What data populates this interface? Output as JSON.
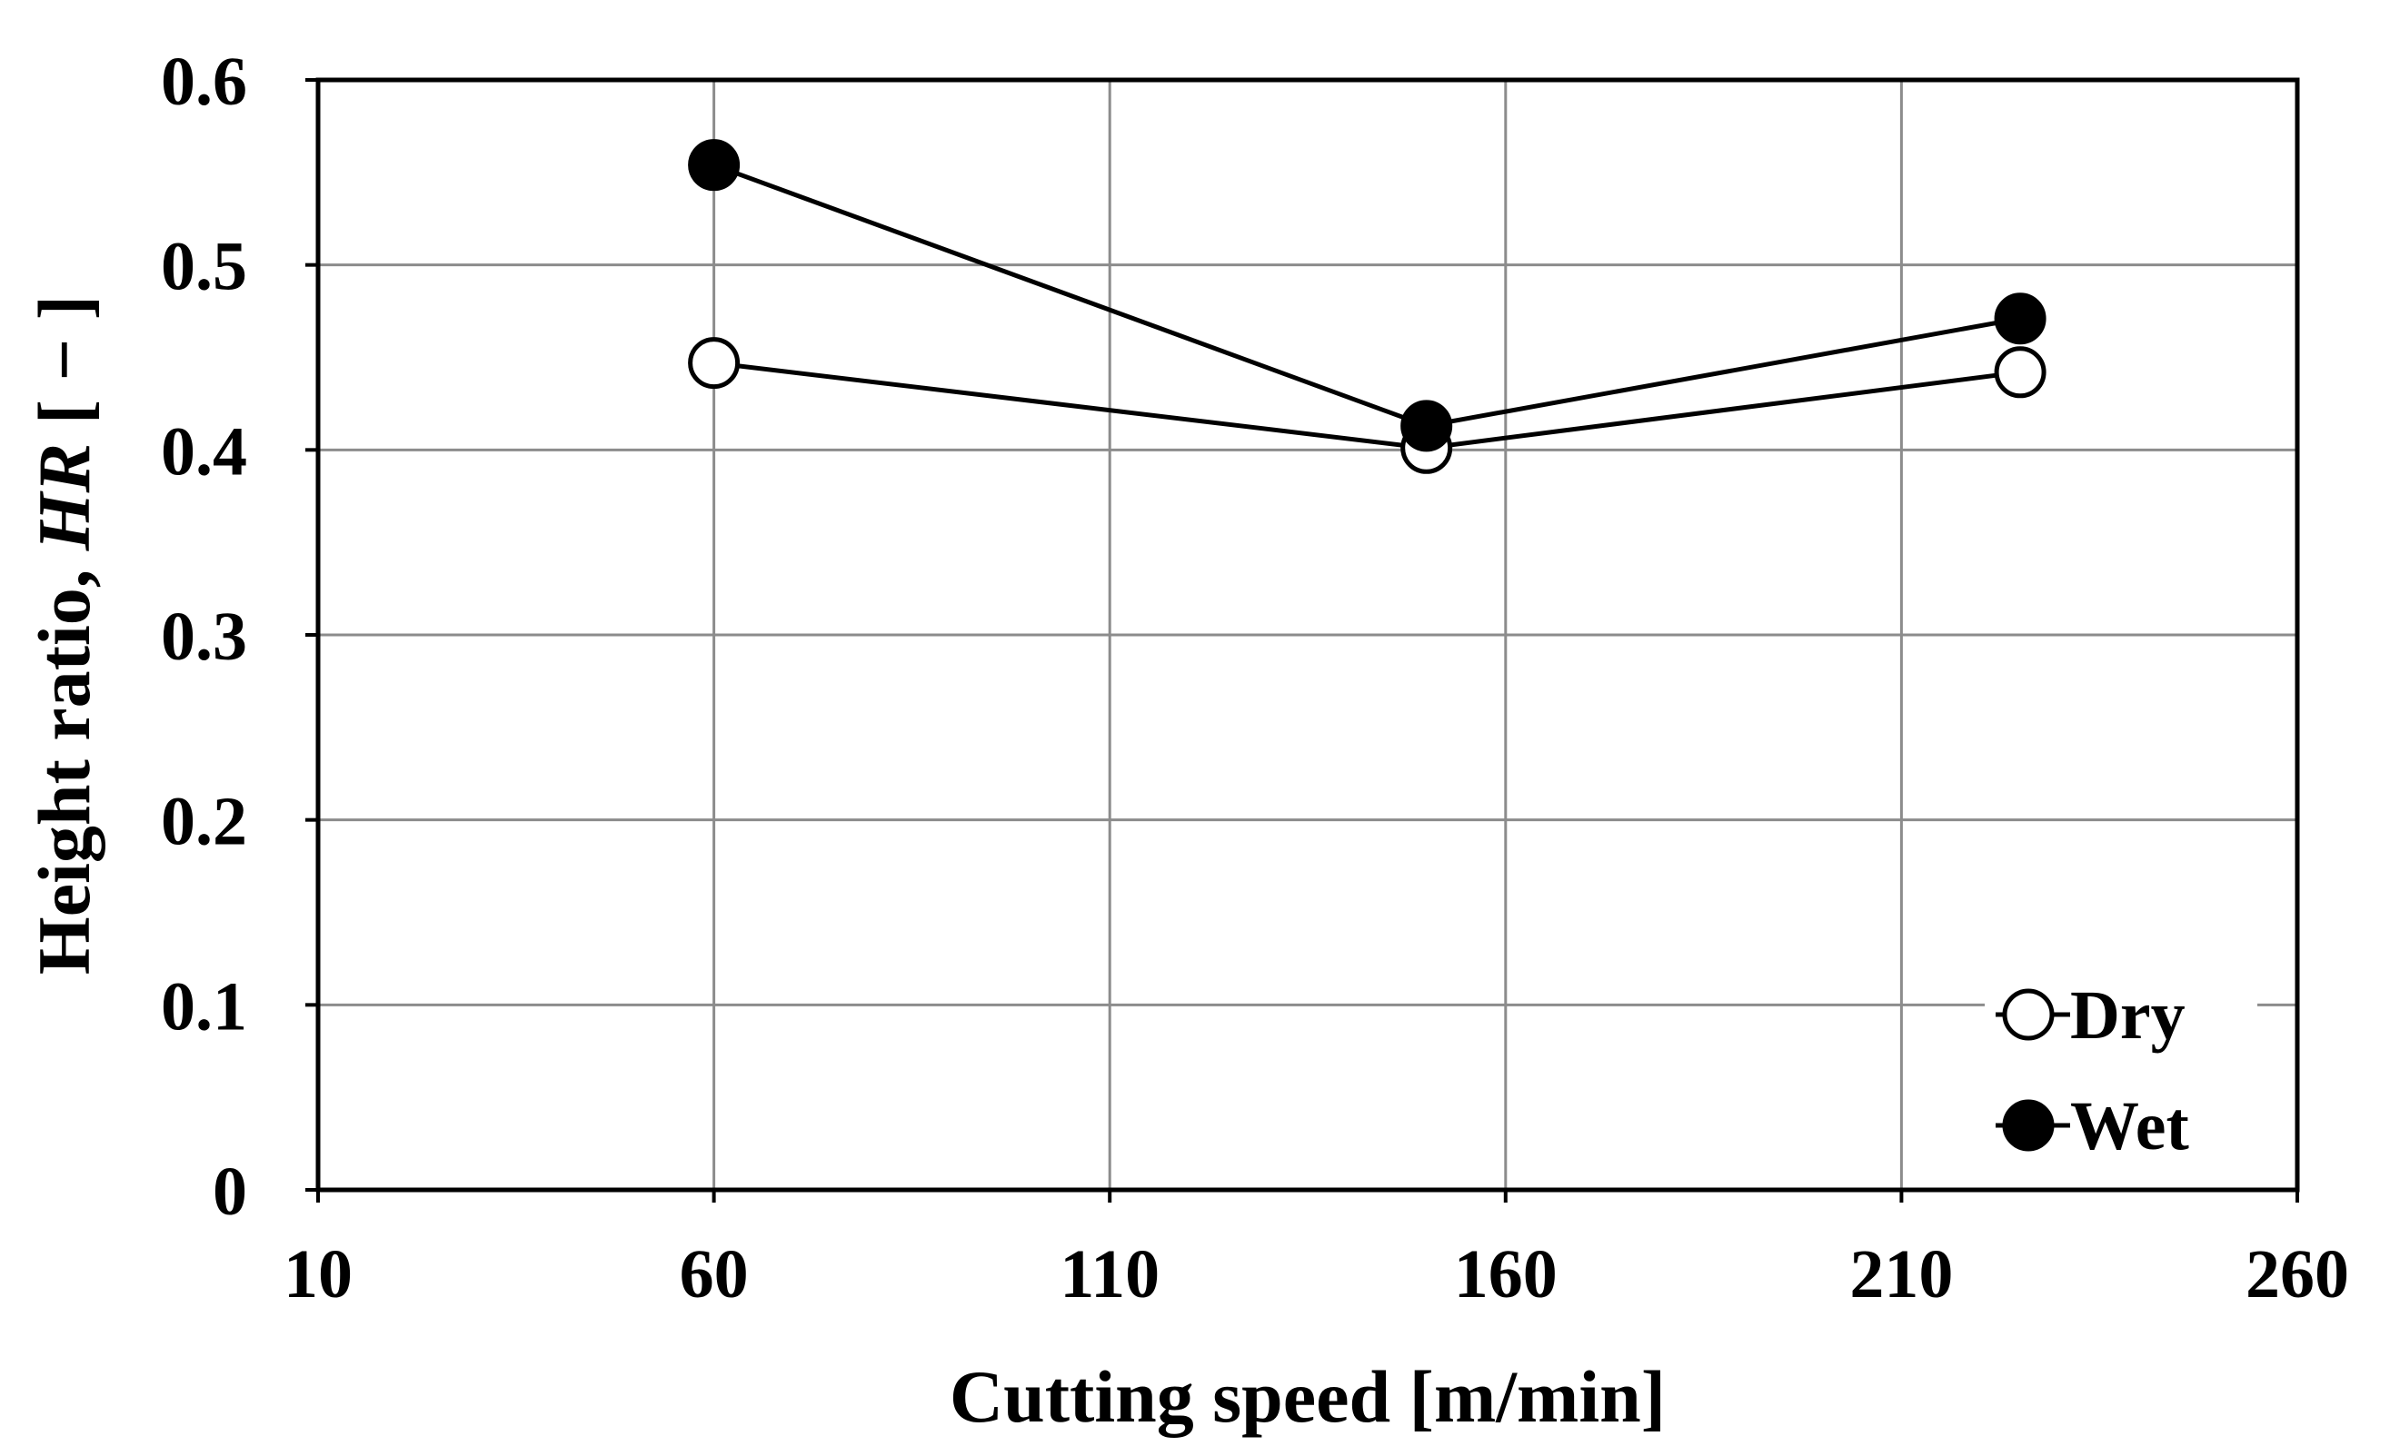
{
  "chart_data": {
    "type": "line",
    "xlabel": "Cutting speed [m/min]",
    "ylabel_parts": {
      "prefix": "Height ratio, ",
      "symbol": "HR",
      "unit": " [ − ]"
    },
    "xlim": [
      10,
      260
    ],
    "ylim": [
      0,
      0.6
    ],
    "xticks": [
      10,
      60,
      110,
      160,
      210,
      260
    ],
    "xtick_labels": [
      "10",
      "60",
      "110",
      "160",
      "210",
      "260"
    ],
    "yticks": [
      0,
      0.1,
      0.2,
      0.3,
      0.4,
      0.5,
      0.6
    ],
    "ytick_labels": [
      "0",
      "0.1",
      "0.2",
      "0.3",
      "0.4",
      "0.5",
      "0.6"
    ],
    "grid": true,
    "legend_position": "bottom-right",
    "series": [
      {
        "name": "Dry",
        "marker": "open-circle",
        "x": [
          60,
          150,
          225
        ],
        "y": [
          0.447,
          0.401,
          0.442
        ]
      },
      {
        "name": "Wet",
        "marker": "filled-circle",
        "x": [
          60,
          150,
          225
        ],
        "y": [
          0.554,
          0.413,
          0.471
        ]
      }
    ]
  }
}
